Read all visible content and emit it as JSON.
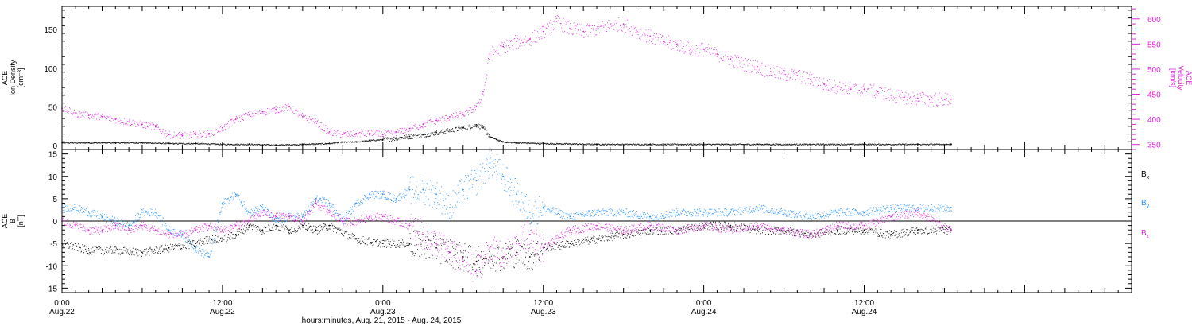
{
  "colors": {
    "density": "#000000",
    "velocity": "#e020e0",
    "bx": "#000000",
    "by": "#1e90ff",
    "bz": "#e020e0",
    "axis": "#000000"
  },
  "x_axis": {
    "title": "hours:minutes, Aug. 21, 2015 - Aug. 24, 2015",
    "range_hours": [
      0,
      80
    ],
    "ticks": [
      {
        "h": 0,
        "time": "0:00",
        "date": "Aug.22"
      },
      {
        "h": 12,
        "time": "12:00",
        "date": "Aug.22"
      },
      {
        "h": 24,
        "time": "0:00",
        "date": "Aug.23"
      },
      {
        "h": 36,
        "time": "12:00",
        "date": "Aug.23"
      },
      {
        "h": 48,
        "time": "0:00",
        "date": "Aug.24"
      },
      {
        "h": 60,
        "time": "12:00",
        "date": "Aug.24"
      }
    ]
  },
  "chart_data": [
    {
      "type": "scatter",
      "panel": "top",
      "left_axis": {
        "label_lines": [
          "ACE",
          "Ion Density",
          "[cm⁻³]"
        ],
        "ylim": [
          -5,
          180
        ],
        "ticks": [
          0,
          50,
          100,
          150
        ]
      },
      "right_axis": {
        "label_lines": [
          "ACE",
          "Velocity",
          "[km/s]"
        ],
        "ylim": [
          340,
          625
        ],
        "ticks": [
          350,
          400,
          450,
          500,
          550,
          600
        ]
      },
      "series": [
        {
          "key": "density",
          "axis": "left",
          "x_hours": [
            0,
            2,
            4,
            6,
            8,
            10,
            12,
            14,
            16,
            18,
            20,
            21,
            22,
            23,
            24,
            25,
            26,
            27,
            28,
            29,
            30,
            31,
            31.5,
            32,
            32.5,
            33,
            34,
            36,
            40,
            44,
            48,
            52,
            56,
            60,
            64,
            66.5
          ],
          "y": [
            4,
            4,
            4,
            4,
            3,
            3,
            2,
            2,
            1,
            2,
            3,
            5,
            5,
            7,
            8,
            10,
            12,
            14,
            17,
            20,
            23,
            27,
            23,
            12,
            8,
            5,
            4,
            3,
            2,
            2,
            2,
            2,
            2,
            2,
            2,
            2
          ]
        },
        {
          "key": "velocity",
          "axis": "right",
          "x_hours": [
            0,
            1,
            2,
            3,
            4,
            5,
            6,
            7,
            8,
            9,
            10,
            11,
            12,
            13,
            14,
            15,
            16,
            17,
            18,
            19,
            20,
            21,
            22,
            23,
            24,
            25,
            26,
            27,
            28,
            29,
            30,
            31,
            31.5,
            32,
            33,
            34,
            35,
            36,
            37,
            38,
            39,
            40,
            41,
            42,
            43,
            44,
            45,
            46,
            47,
            48,
            49,
            50,
            51,
            52,
            53,
            54,
            55,
            56,
            57,
            58,
            59,
            60,
            61,
            62,
            63,
            64,
            65,
            66,
            66.5
          ],
          "y": [
            422,
            412,
            408,
            405,
            400,
            395,
            390,
            385,
            370,
            368,
            370,
            372,
            383,
            400,
            410,
            415,
            420,
            425,
            405,
            395,
            375,
            370,
            372,
            372,
            370,
            375,
            382,
            390,
            398,
            405,
            410,
            425,
            455,
            530,
            545,
            555,
            560,
            575,
            595,
            580,
            575,
            580,
            588,
            590,
            575,
            565,
            555,
            550,
            540,
            540,
            530,
            520,
            510,
            505,
            495,
            490,
            487,
            480,
            470,
            465,
            460,
            460,
            455,
            448,
            444,
            442,
            440,
            440,
            440
          ]
        }
      ]
    },
    {
      "type": "scatter",
      "panel": "bottom",
      "left_axis": {
        "label_lines": [
          "ACE",
          "B",
          "[nT]"
        ],
        "ylim": [
          -16,
          16
        ],
        "ticks": [
          -15,
          -10,
          -5,
          0,
          5,
          10,
          15
        ]
      },
      "zero_line": 0,
      "series": [
        {
          "key": "bx",
          "name": "B",
          "sub": "x",
          "x_hours": [
            0,
            2,
            4,
            6,
            8,
            10,
            11,
            12,
            13,
            14,
            15,
            16,
            17,
            18,
            19,
            20,
            22,
            24,
            26,
            28,
            29,
            30,
            31,
            32,
            33,
            34,
            35,
            36,
            38,
            40,
            42,
            44,
            46,
            48,
            50,
            52,
            54,
            56,
            58,
            60,
            62,
            64,
            66.5
          ],
          "y": [
            -5,
            -6.5,
            -6.5,
            -7,
            -6,
            -5,
            -4,
            -4,
            -3,
            -1,
            -2,
            -1,
            -2,
            -1,
            -2,
            -1,
            -4,
            -5,
            -5,
            -6,
            -7,
            -8,
            -9,
            -8,
            -8,
            -7,
            -8,
            -6,
            -5,
            -4,
            -3,
            -2,
            -2,
            -1,
            -1,
            -2,
            -2,
            -3,
            -2,
            -2,
            -3,
            -2,
            -2
          ]
        },
        {
          "key": "by",
          "name": "B",
          "sub": "y",
          "x_hours": [
            0,
            1,
            2,
            3,
            4,
            5,
            6,
            7,
            8,
            9,
            10,
            11,
            12,
            13,
            14,
            15,
            16,
            17,
            18,
            19,
            20,
            21,
            22,
            23,
            24,
            25,
            26,
            27,
            28,
            29,
            30,
            31,
            32,
            33,
            34,
            35,
            36,
            38,
            40,
            42,
            44,
            46,
            48,
            50,
            52,
            54,
            56,
            58,
            60,
            62,
            64,
            66.5
          ],
          "y": [
            3,
            3,
            2,
            1,
            0,
            -1,
            2,
            2,
            -2,
            -3,
            -6,
            -8,
            4,
            6,
            2,
            3,
            0,
            1,
            1,
            5,
            4,
            0,
            4,
            6,
            6,
            5,
            7,
            7,
            6,
            3,
            7,
            9,
            13,
            10,
            6,
            2,
            3,
            1,
            2,
            2,
            1,
            2,
            2,
            2,
            3,
            2,
            1,
            2,
            2,
            3,
            3,
            3
          ]
        },
        {
          "key": "bz",
          "name": "B",
          "sub": "z",
          "x_hours": [
            0,
            1,
            2,
            3,
            4,
            5,
            6,
            7,
            8,
            9,
            10,
            11,
            12,
            13,
            14,
            15,
            16,
            17,
            18,
            19,
            20,
            21,
            22,
            23,
            24,
            25,
            26,
            27,
            28,
            29,
            30,
            31,
            32,
            33,
            34,
            35,
            36,
            38,
            40,
            42,
            44,
            46,
            48,
            50,
            52,
            54,
            56,
            58,
            60,
            62,
            64,
            66.5
          ],
          "y": [
            0,
            -1,
            -2,
            -2,
            -1,
            -2,
            -1,
            -2,
            -3,
            -3,
            -2,
            -1,
            -2,
            -1,
            0,
            2,
            1,
            1,
            0,
            4,
            2,
            0,
            0,
            1,
            1,
            0,
            -1,
            -3,
            -5,
            -7,
            -9,
            -11,
            -6,
            -8,
            -5,
            -3,
            -6,
            -2,
            -1,
            -2,
            -1,
            -2,
            -1,
            -2,
            -1,
            -2,
            -3,
            -1,
            -1,
            1,
            2,
            -2
          ]
        }
      ]
    }
  ]
}
